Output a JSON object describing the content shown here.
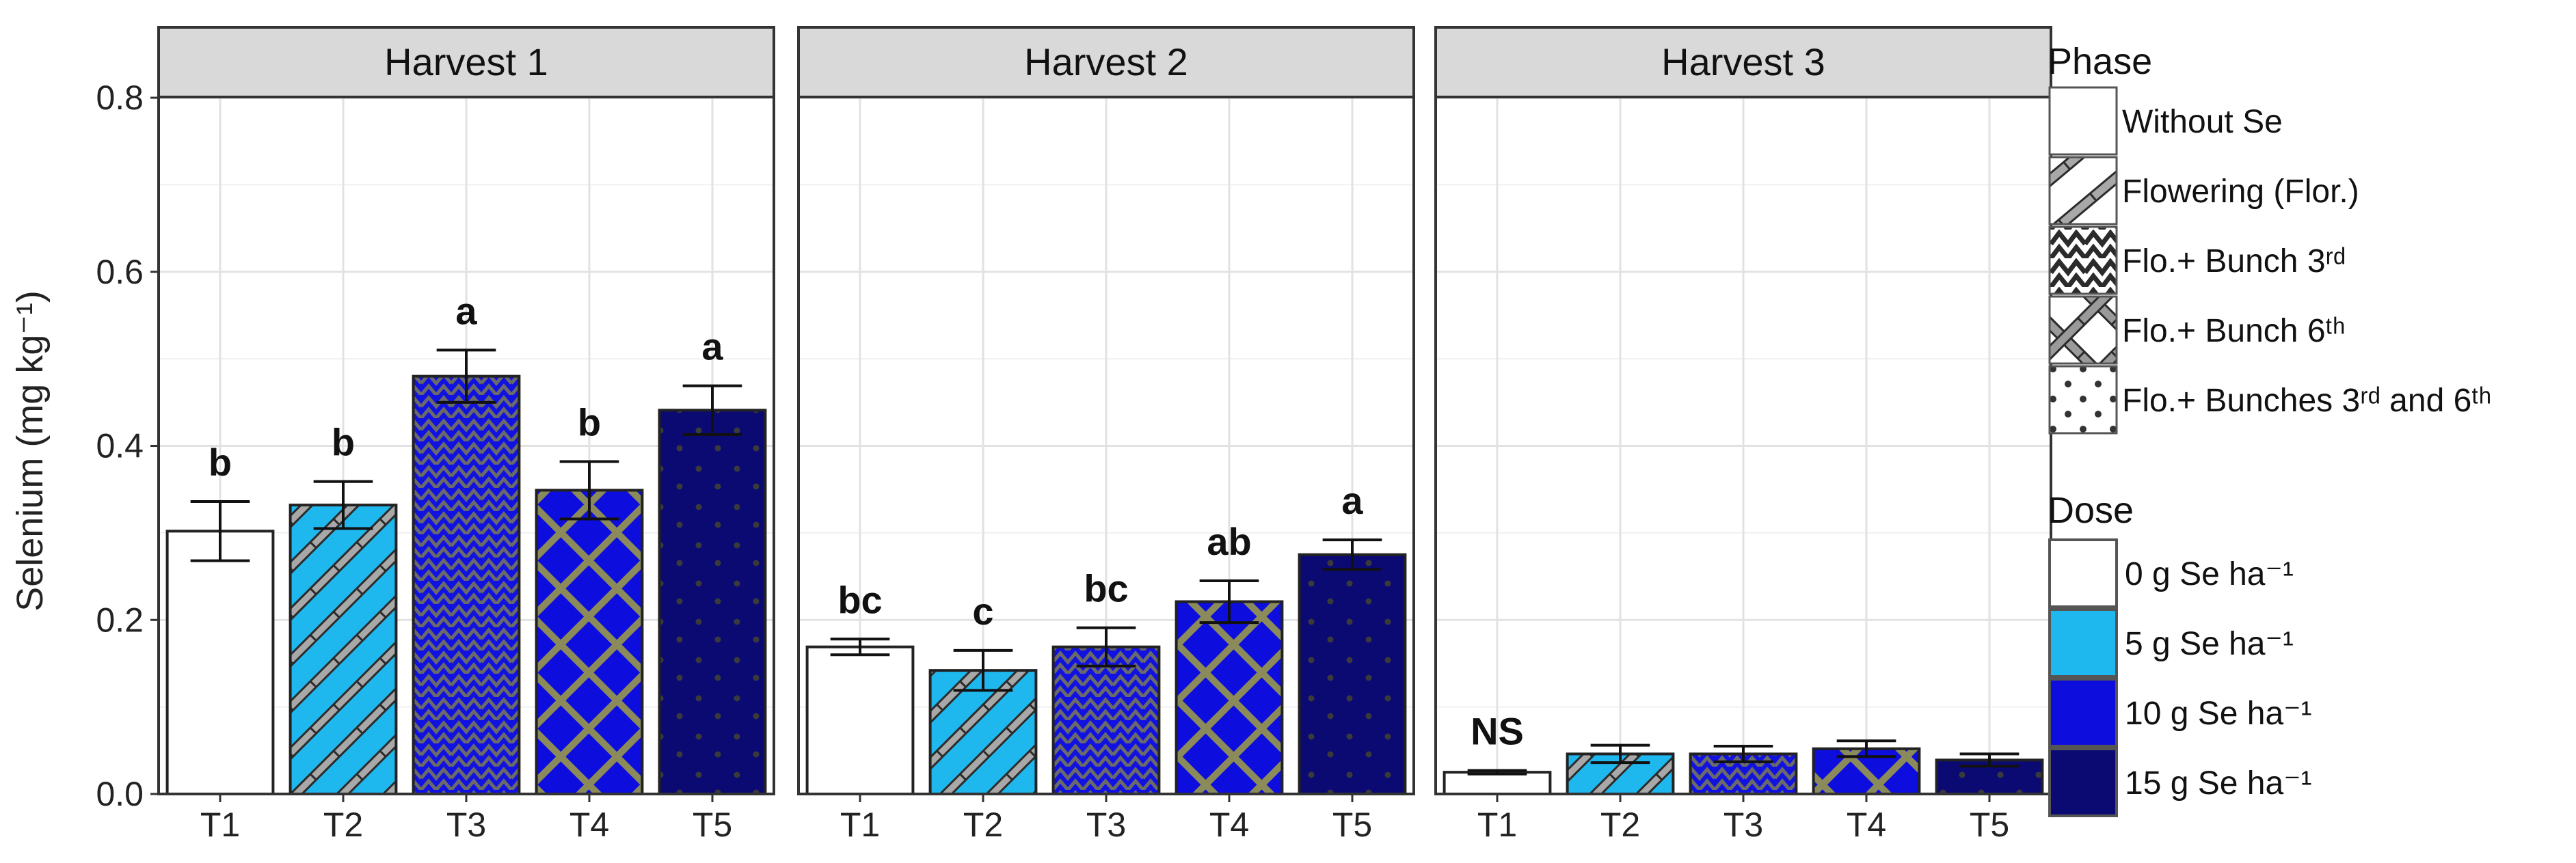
{
  "chart_data": {
    "type": "bar",
    "ylabel": "Selenium (mg kg⁻¹)",
    "ylim": [
      0,
      0.8
    ],
    "yticks": [
      "0.0",
      "0.2",
      "0.4",
      "0.6",
      "0.8"
    ],
    "categories": [
      "T1",
      "T2",
      "T3",
      "T4",
      "T5"
    ],
    "grid": true,
    "legend_position": "right",
    "panels": [
      {
        "title": "Harvest 1",
        "values": [
          0.302,
          0.332,
          0.48,
          0.349,
          0.441
        ],
        "errors": [
          0.034,
          0.027,
          0.03,
          0.033,
          0.028
        ],
        "labels": [
          "b",
          "b",
          "a",
          "b",
          "a"
        ]
      },
      {
        "title": "Harvest 2",
        "values": [
          0.169,
          0.142,
          0.169,
          0.221,
          0.275
        ],
        "errors": [
          0.009,
          0.023,
          0.022,
          0.024,
          0.017
        ],
        "labels": [
          "bc",
          "c",
          "bc",
          "ab",
          "a"
        ]
      },
      {
        "title": "Harvest 3",
        "values": [
          0.025,
          0.046,
          0.046,
          0.052,
          0.039
        ],
        "errors": [
          0.002,
          0.01,
          0.009,
          0.009,
          0.007
        ],
        "labels": [
          "NS",
          "",
          "",
          "",
          ""
        ]
      }
    ],
    "bar_fill_colors": [
      "#ffffff",
      "#1fb8ee",
      "#1212e0",
      "#0d0ddd",
      "#0a0a72"
    ],
    "bar_patterns": [
      "none",
      "stripe",
      "zigzag",
      "crosshatch",
      "dots"
    ],
    "legend_phase": {
      "title": "Phase",
      "items": [
        {
          "label": "Without Se",
          "pattern": "none"
        },
        {
          "label": "Flowering (Flor.)",
          "pattern": "stripe"
        },
        {
          "label": "Flo.+ Bunch 3ʳᵈ",
          "pattern": "zigzag"
        },
        {
          "label": "Flo.+ Bunch 6ᵗʰ",
          "pattern": "crosshatch"
        },
        {
          "label": "Flo.+ Bunches 3ʳᵈ and 6ᵗʰ",
          "pattern": "dots"
        }
      ]
    },
    "legend_dose": {
      "title": "Dose",
      "items": [
        {
          "label": "0 g Se ha⁻¹",
          "color": "#ffffff"
        },
        {
          "label": "5 g Se ha⁻¹",
          "color": "#1fb8ee"
        },
        {
          "label": "10 g Se ha⁻¹",
          "color": "#0d0ddd"
        },
        {
          "label": "15 g Se ha⁻¹",
          "color": "#0a0a72"
        }
      ]
    }
  }
}
